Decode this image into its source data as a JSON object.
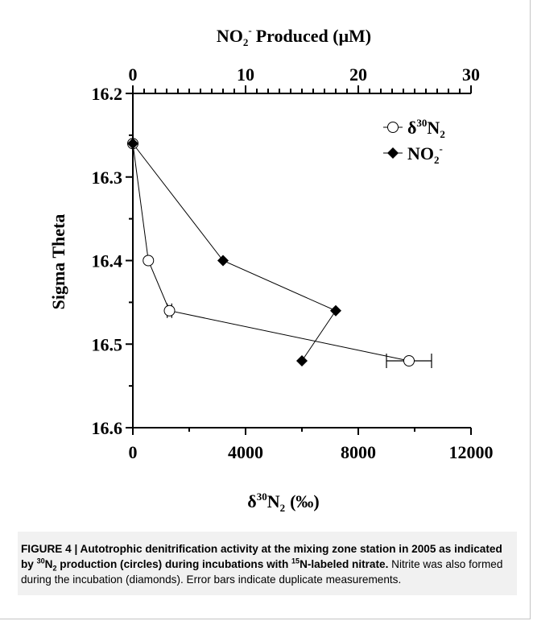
{
  "chart_data": {
    "type": "scatter",
    "y_axis": {
      "label": "Sigma Theta",
      "ylim": [
        16.2,
        16.6
      ],
      "ticks": [
        "16.2",
        "16.3",
        "16.4",
        "16.5",
        "16.6"
      ],
      "inverted": true
    },
    "x_bottom_axis": {
      "label_main": "δ",
      "label_sup": "30",
      "label_n": "N",
      "label_sub": "2",
      "label_unit": "(‰)",
      "xlim": [
        0,
        12000
      ],
      "ticks": [
        "0",
        "4000",
        "8000",
        "12000"
      ]
    },
    "x_top_axis": {
      "label_main": "NO",
      "label_sub": "2",
      "label_sup": "-",
      "label_rest": "Produced (μM)",
      "xlim": [
        0,
        30
      ],
      "ticks": [
        "0",
        "10",
        "20",
        "30"
      ]
    },
    "legend_placement": "top-right",
    "series": [
      {
        "name": "δ30N2",
        "legend_prefix": "δ",
        "legend_sup": "30",
        "legend_n": "N",
        "legend_sub": "2",
        "marker": "open-circle",
        "axis": "bottom",
        "points": [
          {
            "x": 0,
            "y": 16.26,
            "xerr": 0
          },
          {
            "x": 550,
            "y": 16.4,
            "xerr": 0
          },
          {
            "x": 1300,
            "y": 16.46,
            "xerr": 80
          },
          {
            "x": 9800,
            "y": 16.52,
            "xerr": 800
          }
        ]
      },
      {
        "name": "NO2-",
        "legend_prefix": "NO",
        "legend_sub": "2",
        "legend_sup": "-",
        "marker": "filled-diamond",
        "axis": "top",
        "points": [
          {
            "x": 0,
            "y": 16.26
          },
          {
            "x": 8,
            "y": 16.4
          },
          {
            "x": 18,
            "y": 16.46
          },
          {
            "x": 15,
            "y": 16.52
          }
        ]
      }
    ]
  },
  "caption": {
    "figure_label": "FIGURE 4 | Autotrophic denitrification activity at the mixing zone station in 2005 as indicated by",
    "bold_sup_1": "30",
    "bold_n2": "N",
    "bold_sub_2": "2",
    "bold_mid": "production (circles) during incubations with",
    "bold_sup_15": "15",
    "bold_end": "N-labeled nitrate.",
    "body": "Nitrite was also formed during the incubation (diamonds). Error bars indicate duplicate measurements."
  }
}
